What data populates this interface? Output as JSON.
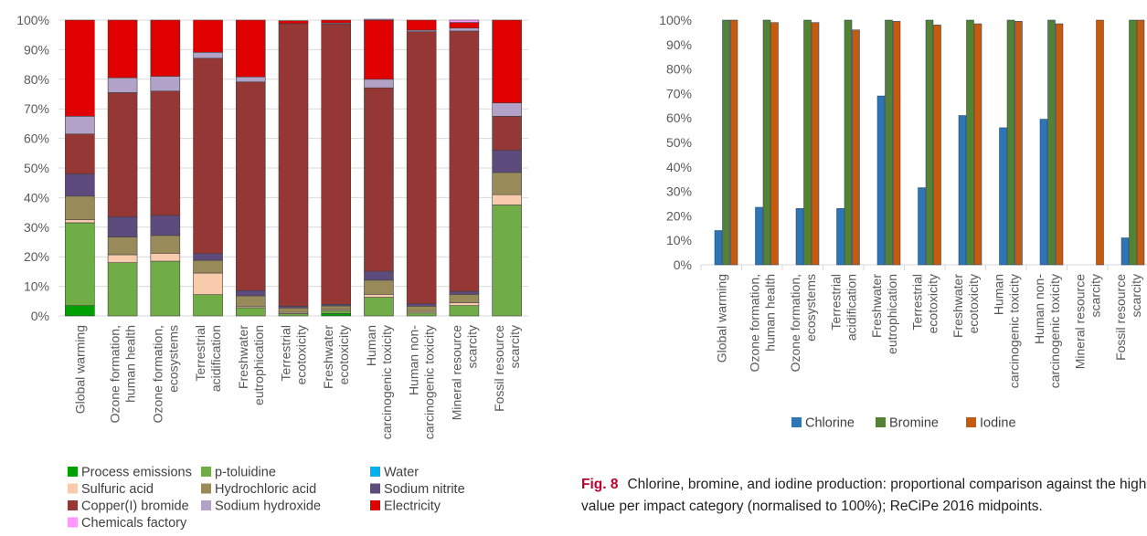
{
  "chart_data": [
    {
      "type": "bar",
      "stacked": true,
      "categories": [
        "Global warming",
        "Ozone formation, human health",
        "Ozone formation, ecosystems",
        "Terrestrial acidification",
        "Freshwater eutrophication",
        "Terrestrial ecotoxicity",
        "Freshwater ecotoxicity",
        "Human carcinogenic toxicity",
        "Human non-carcinogenic toxicity",
        "Mineral resource scarcity",
        "Fossil resource scarcity"
      ],
      "category_lines": [
        [
          "Global warming"
        ],
        [
          "Ozone formation,",
          "human health"
        ],
        [
          "Ozone formation,",
          "ecosystems"
        ],
        [
          "Terrestrial",
          "acidification"
        ],
        [
          "Freshwater",
          "eutrophication"
        ],
        [
          "Terrestrial",
          "ecotoxicity"
        ],
        [
          "Freshwater",
          "ecotoxicity"
        ],
        [
          "Human",
          "carcinogenic toxicity"
        ],
        [
          "Human non-",
          "carcinogenic toxicity"
        ],
        [
          "Mineral resource",
          "scarcity"
        ],
        [
          "Fossil resource",
          "scarcity"
        ]
      ],
      "yticks": [
        "0%",
        "10%",
        "20%",
        "30%",
        "40%",
        "50%",
        "60%",
        "70%",
        "80%",
        "90%",
        "100%"
      ],
      "ylim": [
        0,
        100
      ],
      "legend_position": "bottom",
      "series": [
        {
          "name": "Process emissions",
          "color": "#00a000",
          "values": [
            3.5,
            0,
            0,
            0,
            0,
            0,
            0.8,
            0,
            0,
            0,
            0
          ]
        },
        {
          "name": "p-toluidine",
          "color": "#70ad47",
          "values": [
            28,
            18,
            18.5,
            7.2,
            2.8,
            0.8,
            1.0,
            6.3,
            1.0,
            3.5,
            37.5
          ]
        },
        {
          "name": "Water",
          "color": "#00b0f0",
          "values": [
            0,
            0,
            0,
            0,
            0,
            0,
            0,
            0,
            0,
            0,
            0
          ]
        },
        {
          "name": "Sulfuric acid",
          "color": "#f8cbad",
          "values": [
            1.0,
            2.7,
            2.7,
            7.3,
            0.5,
            0.4,
            0.4,
            1.0,
            0.5,
            1.0,
            3.5
          ]
        },
        {
          "name": "Hydrochloric acid",
          "color": "#998a5a",
          "values": [
            8.0,
            6.0,
            6.0,
            4.3,
            3.5,
            1.5,
            1.2,
            4.8,
            1.8,
            2.8,
            7.5
          ]
        },
        {
          "name": "Sodium nitrite",
          "color": "#5e4b7e",
          "values": [
            7.5,
            6.8,
            6.8,
            2.3,
            1.8,
            0.6,
            0.5,
            3.0,
            0.8,
            1.0,
            7.5
          ]
        },
        {
          "name": "Copper(I) bromide",
          "color": "#953735",
          "values": [
            13.5,
            42,
            42,
            66,
            70.5,
            95.5,
            94.8,
            62,
            92,
            88,
            11.5
          ]
        },
        {
          "name": "Sodium hydroxide",
          "color": "#b3a2c7",
          "values": [
            6.0,
            5.0,
            5.0,
            2.0,
            1.7,
            0,
            0.3,
            2.9,
            0.5,
            1.0,
            4.5
          ]
        },
        {
          "name": "Electricity",
          "color": "#e00000",
          "values": [
            32.5,
            19.5,
            19,
            10.9,
            19.2,
            1.0,
            1.0,
            20,
            3.4,
            1.9,
            28
          ]
        },
        {
          "name": "Chemicals factory",
          "color": "#ff99ff",
          "values": [
            0,
            0,
            0,
            0,
            0,
            0,
            0,
            0.3,
            0,
            0.8,
            0
          ]
        }
      ]
    },
    {
      "type": "bar",
      "categories": [
        "Global warming",
        "Ozone formation, human health",
        "Ozone formation, ecosystems",
        "Terrestrial acidification",
        "Freshwater eutrophication",
        "Terrestrial ecotoxicity",
        "Freshwater ecotoxicity",
        "Human carcinogenic toxicity",
        "Human non-carcinogenic toxicity",
        "Mineral resource scarcity",
        "Fossil resource scarcity"
      ],
      "category_lines": [
        [
          "Global warming"
        ],
        [
          "Ozone formation,",
          "human health"
        ],
        [
          "Ozone formation,",
          "ecosystems"
        ],
        [
          "Terrestrial",
          "acidification"
        ],
        [
          "Freshwater",
          "eutrophication"
        ],
        [
          "Terrestrial",
          "ecotoxicity"
        ],
        [
          "Freshwater",
          "ecotoxicity"
        ],
        [
          "Human",
          "carcinogenic toxicity"
        ],
        [
          "Human non-",
          "carcinogenic toxicity"
        ],
        [
          "Mineral resource",
          "scarcity"
        ],
        [
          "Fossil resource",
          "scarcity"
        ]
      ],
      "yticks": [
        "0%",
        "10%",
        "20%",
        "30%",
        "40%",
        "50%",
        "60%",
        "70%",
        "80%",
        "90%",
        "100%"
      ],
      "ylim": [
        0,
        100
      ],
      "legend_position": "bottom",
      "series": [
        {
          "name": "Chlorine",
          "color": "#2e75b6",
          "values": [
            14,
            23.5,
            23,
            23,
            69,
            31.5,
            61,
            56,
            59.5,
            0,
            11
          ]
        },
        {
          "name": "Bromine",
          "color": "#548235",
          "values": [
            100,
            100,
            100,
            100,
            100,
            100,
            100,
            100,
            100,
            0,
            100
          ]
        },
        {
          "name": "Iodine",
          "color": "#c55a11",
          "values": [
            100,
            99,
            99,
            96,
            99.5,
            98,
            98.5,
            99.5,
            98.5,
            100,
            100
          ]
        }
      ]
    }
  ],
  "caption": {
    "label": "Fig. 8",
    "text": "Chlorine, bromine, and iodine production: proportional comparison against the highest value per impact category (normalised to 100%); ReCiPe 2016 midpoints."
  }
}
